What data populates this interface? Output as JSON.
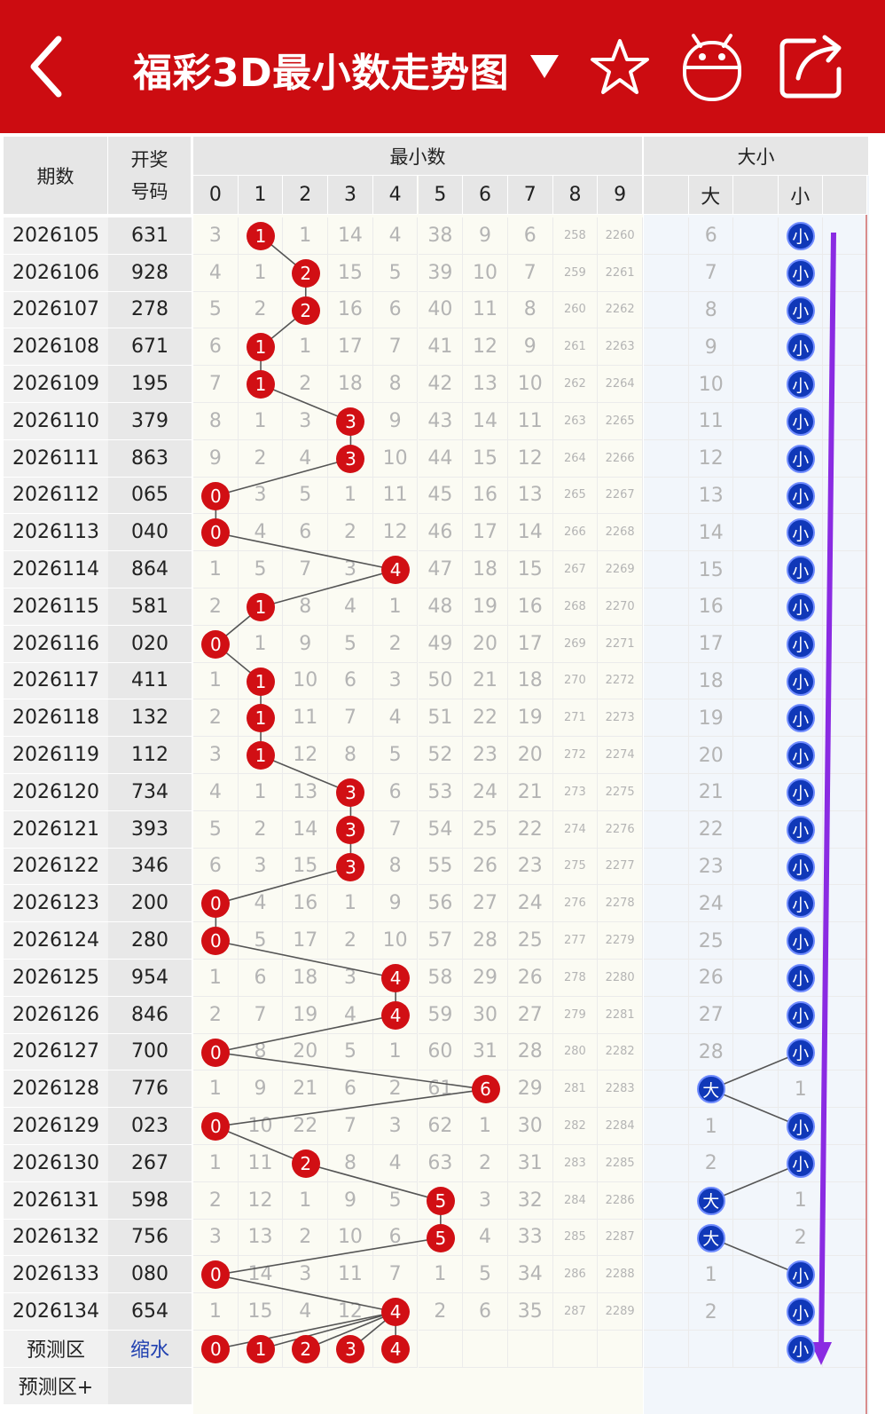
{
  "header": {
    "title": "福彩3D最小数走势图",
    "dropdown_icon": "caret-down-icon",
    "back_icon": "chevron-left-icon",
    "favorite_icon": "star-icon",
    "robot_icon": "android-robot-icon",
    "share_icon": "share-icon",
    "bg_color": "#cc0c11"
  },
  "table": {
    "headers": {
      "period": "期数",
      "code_line1": "开奖",
      "code_line2": "号码",
      "min_group": "最小数",
      "size_group": "大小",
      "digits": [
        "0",
        "1",
        "2",
        "3",
        "4",
        "5",
        "6",
        "7",
        "8",
        "9"
      ],
      "size_big": "大",
      "size_small": "小"
    },
    "rows": [
      {
        "period": "2026105",
        "code": "631",
        "min": 1,
        "omit": [
          "3",
          "",
          "1",
          "14",
          "4",
          "38",
          "9",
          "6",
          "258",
          "2260"
        ],
        "size": "小",
        "size_omit": "6"
      },
      {
        "period": "2026106",
        "code": "928",
        "min": 2,
        "omit": [
          "4",
          "1",
          "",
          "15",
          "5",
          "39",
          "10",
          "7",
          "259",
          "2261"
        ],
        "size": "小",
        "size_omit": "7"
      },
      {
        "period": "2026107",
        "code": "278",
        "min": 2,
        "omit": [
          "5",
          "2",
          "",
          "16",
          "6",
          "40",
          "11",
          "8",
          "260",
          "2262"
        ],
        "size": "小",
        "size_omit": "8"
      },
      {
        "period": "2026108",
        "code": "671",
        "min": 1,
        "omit": [
          "6",
          "",
          "1",
          "17",
          "7",
          "41",
          "12",
          "9",
          "261",
          "2263"
        ],
        "size": "小",
        "size_omit": "9"
      },
      {
        "period": "2026109",
        "code": "195",
        "min": 1,
        "omit": [
          "7",
          "",
          "2",
          "18",
          "8",
          "42",
          "13",
          "10",
          "262",
          "2264"
        ],
        "size": "小",
        "size_omit": "10"
      },
      {
        "period": "2026110",
        "code": "379",
        "min": 3,
        "omit": [
          "8",
          "1",
          "3",
          "",
          "9",
          "43",
          "14",
          "11",
          "263",
          "2265"
        ],
        "size": "小",
        "size_omit": "11"
      },
      {
        "period": "2026111",
        "code": "863",
        "min": 3,
        "omit": [
          "9",
          "2",
          "4",
          "",
          "10",
          "44",
          "15",
          "12",
          "264",
          "2266"
        ],
        "size": "小",
        "size_omit": "12"
      },
      {
        "period": "2026112",
        "code": "065",
        "min": 0,
        "omit": [
          "",
          "3",
          "5",
          "1",
          "11",
          "45",
          "16",
          "13",
          "265",
          "2267"
        ],
        "size": "小",
        "size_omit": "13"
      },
      {
        "period": "2026113",
        "code": "040",
        "min": 0,
        "omit": [
          "",
          "4",
          "6",
          "2",
          "12",
          "46",
          "17",
          "14",
          "266",
          "2268"
        ],
        "size": "小",
        "size_omit": "14"
      },
      {
        "period": "2026114",
        "code": "864",
        "min": 4,
        "omit": [
          "1",
          "5",
          "7",
          "3",
          "",
          "47",
          "18",
          "15",
          "267",
          "2269"
        ],
        "size": "小",
        "size_omit": "15"
      },
      {
        "period": "2026115",
        "code": "581",
        "min": 1,
        "omit": [
          "2",
          "",
          "8",
          "4",
          "1",
          "48",
          "19",
          "16",
          "268",
          "2270"
        ],
        "size": "小",
        "size_omit": "16"
      },
      {
        "period": "2026116",
        "code": "020",
        "min": 0,
        "omit": [
          "",
          "1",
          "9",
          "5",
          "2",
          "49",
          "20",
          "17",
          "269",
          "2271"
        ],
        "size": "小",
        "size_omit": "17"
      },
      {
        "period": "2026117",
        "code": "411",
        "min": 1,
        "omit": [
          "1",
          "",
          "10",
          "6",
          "3",
          "50",
          "21",
          "18",
          "270",
          "2272"
        ],
        "size": "小",
        "size_omit": "18"
      },
      {
        "period": "2026118",
        "code": "132",
        "min": 1,
        "omit": [
          "2",
          "",
          "11",
          "7",
          "4",
          "51",
          "22",
          "19",
          "271",
          "2273"
        ],
        "size": "小",
        "size_omit": "19"
      },
      {
        "period": "2026119",
        "code": "112",
        "min": 1,
        "omit": [
          "3",
          "",
          "12",
          "8",
          "5",
          "52",
          "23",
          "20",
          "272",
          "2274"
        ],
        "size": "小",
        "size_omit": "20"
      },
      {
        "period": "2026120",
        "code": "734",
        "min": 3,
        "omit": [
          "4",
          "1",
          "13",
          "",
          "6",
          "53",
          "24",
          "21",
          "273",
          "2275"
        ],
        "size": "小",
        "size_omit": "21"
      },
      {
        "period": "2026121",
        "code": "393",
        "min": 3,
        "omit": [
          "5",
          "2",
          "14",
          "",
          "7",
          "54",
          "25",
          "22",
          "274",
          "2276"
        ],
        "size": "小",
        "size_omit": "22"
      },
      {
        "period": "2026122",
        "code": "346",
        "min": 3,
        "omit": [
          "6",
          "3",
          "15",
          "",
          "8",
          "55",
          "26",
          "23",
          "275",
          "2277"
        ],
        "size": "小",
        "size_omit": "23"
      },
      {
        "period": "2026123",
        "code": "200",
        "min": 0,
        "omit": [
          "",
          "4",
          "16",
          "1",
          "9",
          "56",
          "27",
          "24",
          "276",
          "2278"
        ],
        "size": "小",
        "size_omit": "24"
      },
      {
        "period": "2026124",
        "code": "280",
        "min": 0,
        "omit": [
          "",
          "5",
          "17",
          "2",
          "10",
          "57",
          "28",
          "25",
          "277",
          "2279"
        ],
        "size": "小",
        "size_omit": "25"
      },
      {
        "period": "2026125",
        "code": "954",
        "min": 4,
        "omit": [
          "1",
          "6",
          "18",
          "3",
          "",
          "58",
          "29",
          "26",
          "278",
          "2280"
        ],
        "size": "小",
        "size_omit": "26"
      },
      {
        "period": "2026126",
        "code": "846",
        "min": 4,
        "omit": [
          "2",
          "7",
          "19",
          "4",
          "",
          "59",
          "30",
          "27",
          "279",
          "2281"
        ],
        "size": "小",
        "size_omit": "27"
      },
      {
        "period": "2026127",
        "code": "700",
        "min": 0,
        "omit": [
          "",
          "8",
          "20",
          "5",
          "1",
          "60",
          "31",
          "28",
          "280",
          "2282"
        ],
        "size": "小",
        "size_omit": "28"
      },
      {
        "period": "2026128",
        "code": "776",
        "min": 6,
        "omit": [
          "1",
          "9",
          "21",
          "6",
          "2",
          "61",
          "",
          "29",
          "281",
          "2283"
        ],
        "size": "大",
        "size_omit": "1"
      },
      {
        "period": "2026129",
        "code": "023",
        "min": 0,
        "omit": [
          "",
          "10",
          "22",
          "7",
          "3",
          "62",
          "1",
          "30",
          "282",
          "2284"
        ],
        "size": "小",
        "size_omit": "1"
      },
      {
        "period": "2026130",
        "code": "267",
        "min": 2,
        "omit": [
          "1",
          "11",
          "",
          "8",
          "4",
          "63",
          "2",
          "31",
          "283",
          "2285"
        ],
        "size": "小",
        "size_omit": "2"
      },
      {
        "period": "2026131",
        "code": "598",
        "min": 5,
        "omit": [
          "2",
          "12",
          "1",
          "9",
          "5",
          "",
          "3",
          "32",
          "284",
          "2286"
        ],
        "size": "大",
        "size_omit": "1"
      },
      {
        "period": "2026132",
        "code": "756",
        "min": 5,
        "omit": [
          "3",
          "13",
          "2",
          "10",
          "6",
          "",
          "4",
          "33",
          "285",
          "2287"
        ],
        "size": "大",
        "size_omit": "2"
      },
      {
        "period": "2026133",
        "code": "080",
        "min": 0,
        "omit": [
          "",
          "14",
          "3",
          "11",
          "7",
          "1",
          "5",
          "34",
          "286",
          "2288"
        ],
        "size": "小",
        "size_omit": "1"
      },
      {
        "period": "2026134",
        "code": "654",
        "min": 4,
        "omit": [
          "1",
          "15",
          "4",
          "12",
          "",
          "2",
          "6",
          "35",
          "287",
          "2289"
        ],
        "size": "小",
        "size_omit": "2"
      }
    ],
    "prediction": {
      "label": "预测区",
      "code": "缩水",
      "balls": [
        "0",
        "1",
        "2",
        "3",
        "4"
      ],
      "size": "小"
    },
    "prediction_plus": {
      "label": "预测区+"
    },
    "trend_arrow_color": "#8a2be2",
    "ball_red": "#d10f14",
    "ball_blue": "#1038b8"
  }
}
